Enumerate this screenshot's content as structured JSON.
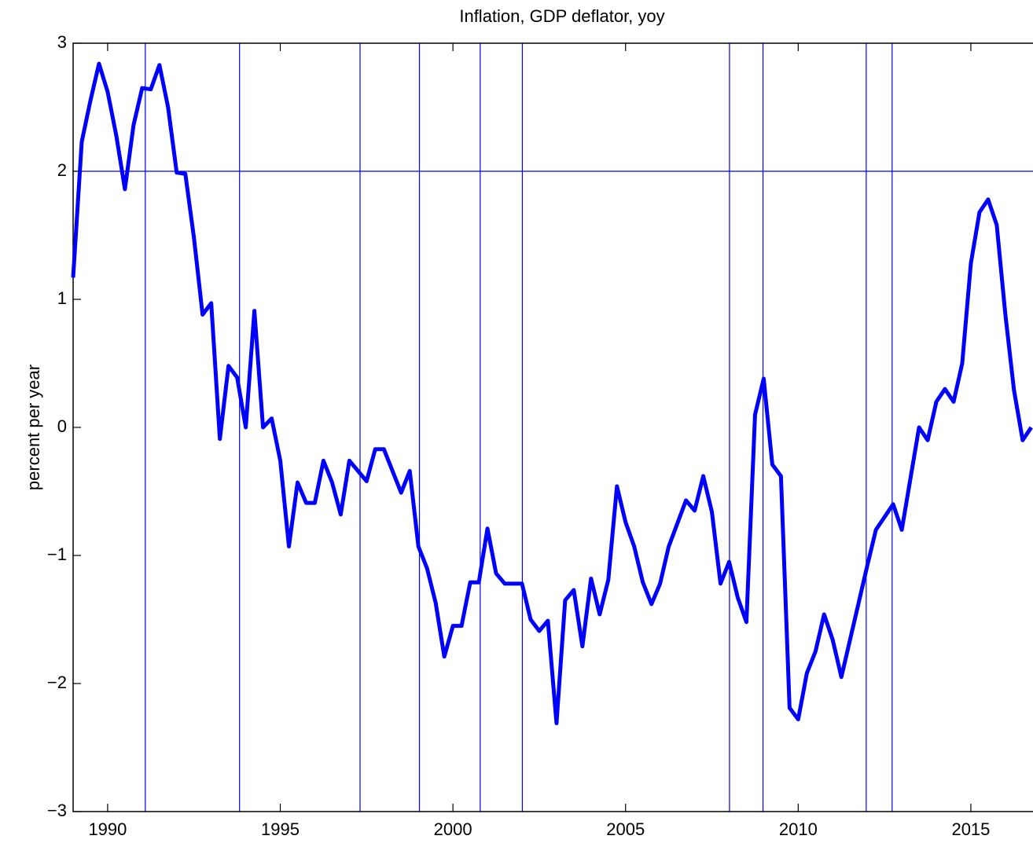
{
  "chart_data": {
    "type": "line",
    "title": "Inflation, GDP deflator, yoy",
    "y_label": "percent per year",
    "xlim": [
      1989,
      2016.8
    ],
    "ylim": [
      -3,
      3
    ],
    "xticks": [
      1990,
      1995,
      2000,
      2005,
      2010,
      2015
    ],
    "yticks": [
      {
        "value": -3,
        "label": "−3"
      },
      {
        "value": -2,
        "label": "−2"
      },
      {
        "value": -1,
        "label": "−1"
      },
      0,
      1,
      2,
      3
    ],
    "hlines": [
      2
    ],
    "vlines": [
      1991.09,
      1993.82,
      1997.31,
      1999.03,
      2000.79,
      2002.01,
      2008.01,
      2008.98,
      2011.97,
      2012.72
    ],
    "reference_color": "#0000ff",
    "x": [
      1989.0,
      1989.25,
      1989.5,
      1989.75,
      1990.0,
      1990.25,
      1990.5,
      1990.75,
      1991.0,
      1991.25,
      1991.5,
      1991.75,
      1992.0,
      1992.25,
      1992.5,
      1992.75,
      1993.0,
      1993.25,
      1993.5,
      1993.75,
      1994.0,
      1994.25,
      1994.5,
      1994.75,
      1995.0,
      1995.25,
      1995.5,
      1995.75,
      1996.0,
      1996.25,
      1996.5,
      1996.75,
      1997.0,
      1997.25,
      1997.5,
      1997.75,
      1998.0,
      1998.25,
      1998.5,
      1998.75,
      1999.0,
      1999.25,
      1999.5,
      1999.75,
      2000.0,
      2000.25,
      2000.5,
      2000.75,
      2001.0,
      2001.25,
      2001.5,
      2001.75,
      2002.0,
      2002.25,
      2002.5,
      2002.75,
      2003.0,
      2003.25,
      2003.5,
      2003.75,
      2004.0,
      2004.25,
      2004.5,
      2004.75,
      2005.0,
      2005.25,
      2005.5,
      2005.75,
      2006.0,
      2006.25,
      2006.5,
      2006.75,
      2007.0,
      2007.25,
      2007.5,
      2007.75,
      2008.0,
      2008.25,
      2008.5,
      2008.75,
      2009.0,
      2009.25,
      2009.5,
      2009.75,
      2010.0,
      2010.25,
      2010.5,
      2010.75,
      2011.0,
      2011.25,
      2011.5,
      2011.75,
      2012.0,
      2012.25,
      2012.5,
      2012.75,
      2013.0,
      2013.25,
      2013.5,
      2013.75,
      2014.0,
      2014.25,
      2014.5,
      2014.75,
      2015.0,
      2015.25,
      2015.5,
      2015.75,
      2016.0,
      2016.25,
      2016.5,
      2016.75
    ],
    "series": [
      {
        "name": "inflation",
        "color": "#0000ff",
        "values": [
          1.17,
          2.23,
          2.55,
          2.84,
          2.62,
          2.28,
          1.86,
          2.36,
          2.65,
          2.64,
          2.83,
          2.5,
          1.99,
          1.98,
          1.48,
          0.88,
          0.97,
          -0.09,
          0.48,
          0.39,
          0.0,
          0.91,
          0.0,
          0.07,
          -0.26,
          -0.93,
          -0.43,
          -0.59,
          -0.59,
          -0.26,
          -0.43,
          -0.68,
          -0.26,
          -0.34,
          -0.42,
          -0.17,
          -0.17,
          -0.34,
          -0.51,
          -0.34,
          -0.93,
          -1.1,
          -1.37,
          -1.79,
          -1.55,
          -1.55,
          -1.21,
          -1.21,
          -0.79,
          -1.14,
          -1.22,
          -1.22,
          -1.22,
          -1.5,
          -1.59,
          -1.51,
          -2.31,
          -1.35,
          -1.27,
          -1.71,
          -1.18,
          -1.46,
          -1.19,
          -0.46,
          -0.74,
          -0.93,
          -1.21,
          -1.38,
          -1.22,
          -0.93,
          -0.75,
          -0.57,
          -0.65,
          -0.38,
          -0.66,
          -1.22,
          -1.05,
          -1.33,
          -1.52,
          0.1,
          0.38,
          -0.29,
          -0.38,
          -2.19,
          -2.28,
          -1.92,
          -1.75,
          -1.46,
          -1.66,
          -1.95,
          -1.66,
          -1.37,
          -1.08,
          -0.8,
          -0.7,
          -0.6,
          -0.8,
          -0.4,
          0.0,
          -0.1,
          0.2,
          0.3,
          0.2,
          0.5,
          1.28,
          1.68,
          1.78,
          1.58,
          0.88,
          0.29,
          -0.1,
          0.0
        ]
      }
    ]
  }
}
